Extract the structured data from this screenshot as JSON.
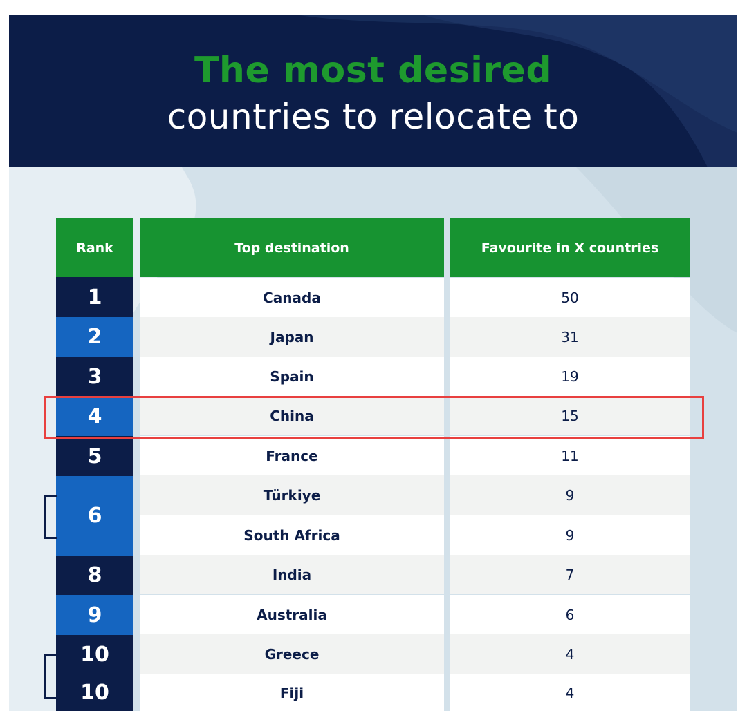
{
  "title": {
    "line1": "The most desired",
    "line2": "countries to relocate to"
  },
  "table": {
    "headers": {
      "rank": "Rank",
      "destination": "Top destination",
      "favourite": "Favourite in X countries"
    },
    "rows": [
      {
        "rank": "1",
        "destination": "Canada",
        "favourite": "50"
      },
      {
        "rank": "2",
        "destination": "Japan",
        "favourite": "31"
      },
      {
        "rank": "3",
        "destination": "Spain",
        "favourite": "19"
      },
      {
        "rank": "4",
        "destination": "China",
        "favourite": "15"
      },
      {
        "rank": "5",
        "destination": "France",
        "favourite": "11"
      },
      {
        "rank": "6",
        "destination": "Türkiye",
        "favourite": "9"
      },
      {
        "rank": "",
        "destination": "South Africa",
        "favourite": "9"
      },
      {
        "rank": "8",
        "destination": "India",
        "favourite": "7"
      },
      {
        "rank": "9",
        "destination": "Australia",
        "favourite": "6"
      },
      {
        "rank": "10",
        "destination": "Greece",
        "favourite": "4"
      },
      {
        "rank": "10",
        "destination": "Fiji",
        "favourite": "4"
      }
    ]
  },
  "colors": {
    "navy": "#0c1d48",
    "blue": "#1565c0",
    "green": "#179331",
    "highlight": "#e8403f"
  }
}
